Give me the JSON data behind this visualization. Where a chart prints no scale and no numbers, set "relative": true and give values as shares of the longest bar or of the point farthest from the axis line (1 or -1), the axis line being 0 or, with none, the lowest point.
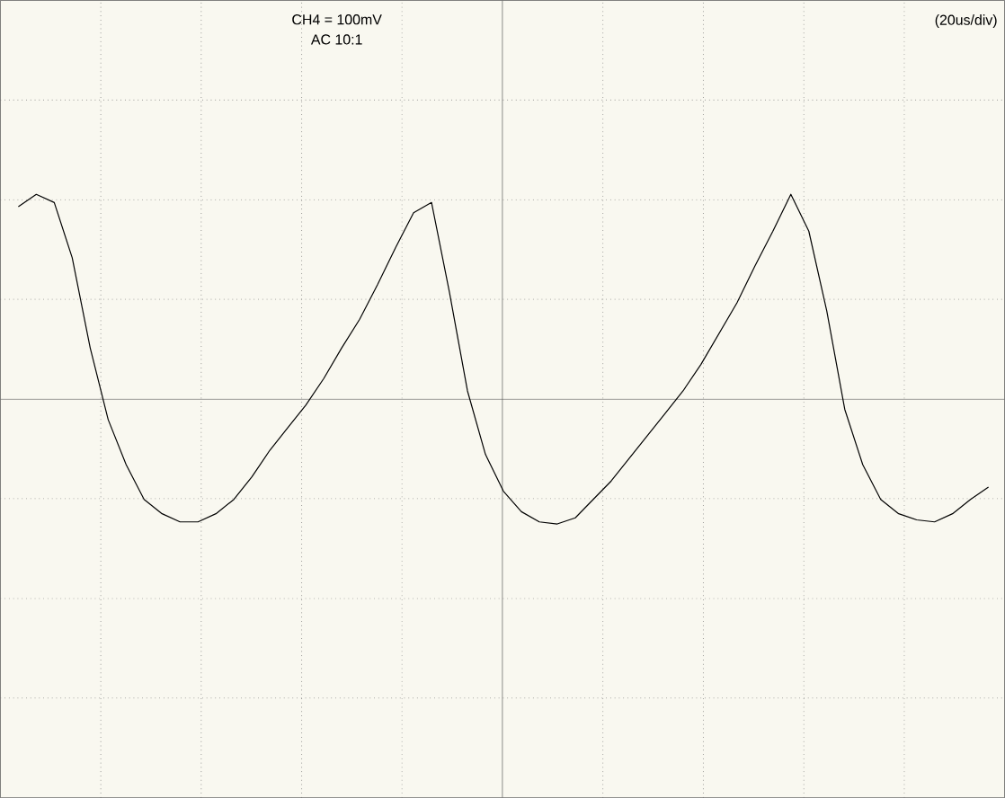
{
  "chart_data": {
    "type": "line",
    "relative": true,
    "grid": true,
    "color": "#000000",
    "annotations": [
      "CH4 = 100mV",
      "AC 10:1",
      "(20us/div)"
    ],
    "categories": [
      null,
      null,
      null,
      null,
      null,
      null,
      null,
      null,
      null,
      null,
      null,
      null,
      null,
      null,
      null,
      null,
      null,
      null,
      null,
      null,
      null,
      null,
      null,
      null,
      null,
      null,
      null,
      null,
      null,
      null,
      null,
      null,
      null,
      null,
      null,
      null,
      null,
      null,
      null,
      null,
      null,
      null,
      null,
      null,
      null,
      null,
      null,
      null,
      null,
      null,
      null,
      null,
      null,
      null,
      null
    ],
    "values": [
      0.94,
      1.0,
      0.96,
      0.69,
      0.25,
      -0.1,
      -0.32,
      -0.49,
      -0.56,
      -0.6,
      -0.6,
      -0.56,
      -0.49,
      -0.38,
      -0.25,
      -0.14,
      -0.03,
      0.1,
      0.25,
      0.39,
      0.56,
      0.74,
      0.91,
      0.96,
      0.52,
      0.04,
      -0.27,
      -0.45,
      -0.55,
      -0.6,
      -0.61,
      -0.58,
      -0.49,
      -0.4,
      -0.29,
      -0.18,
      -0.07,
      0.04,
      0.17,
      0.32,
      0.47,
      0.65,
      0.82,
      1.0,
      0.82,
      0.43,
      -0.05,
      -0.32,
      -0.49,
      -0.56,
      -0.59,
      -0.6,
      -0.56,
      -0.49,
      -0.43
    ]
  }
}
